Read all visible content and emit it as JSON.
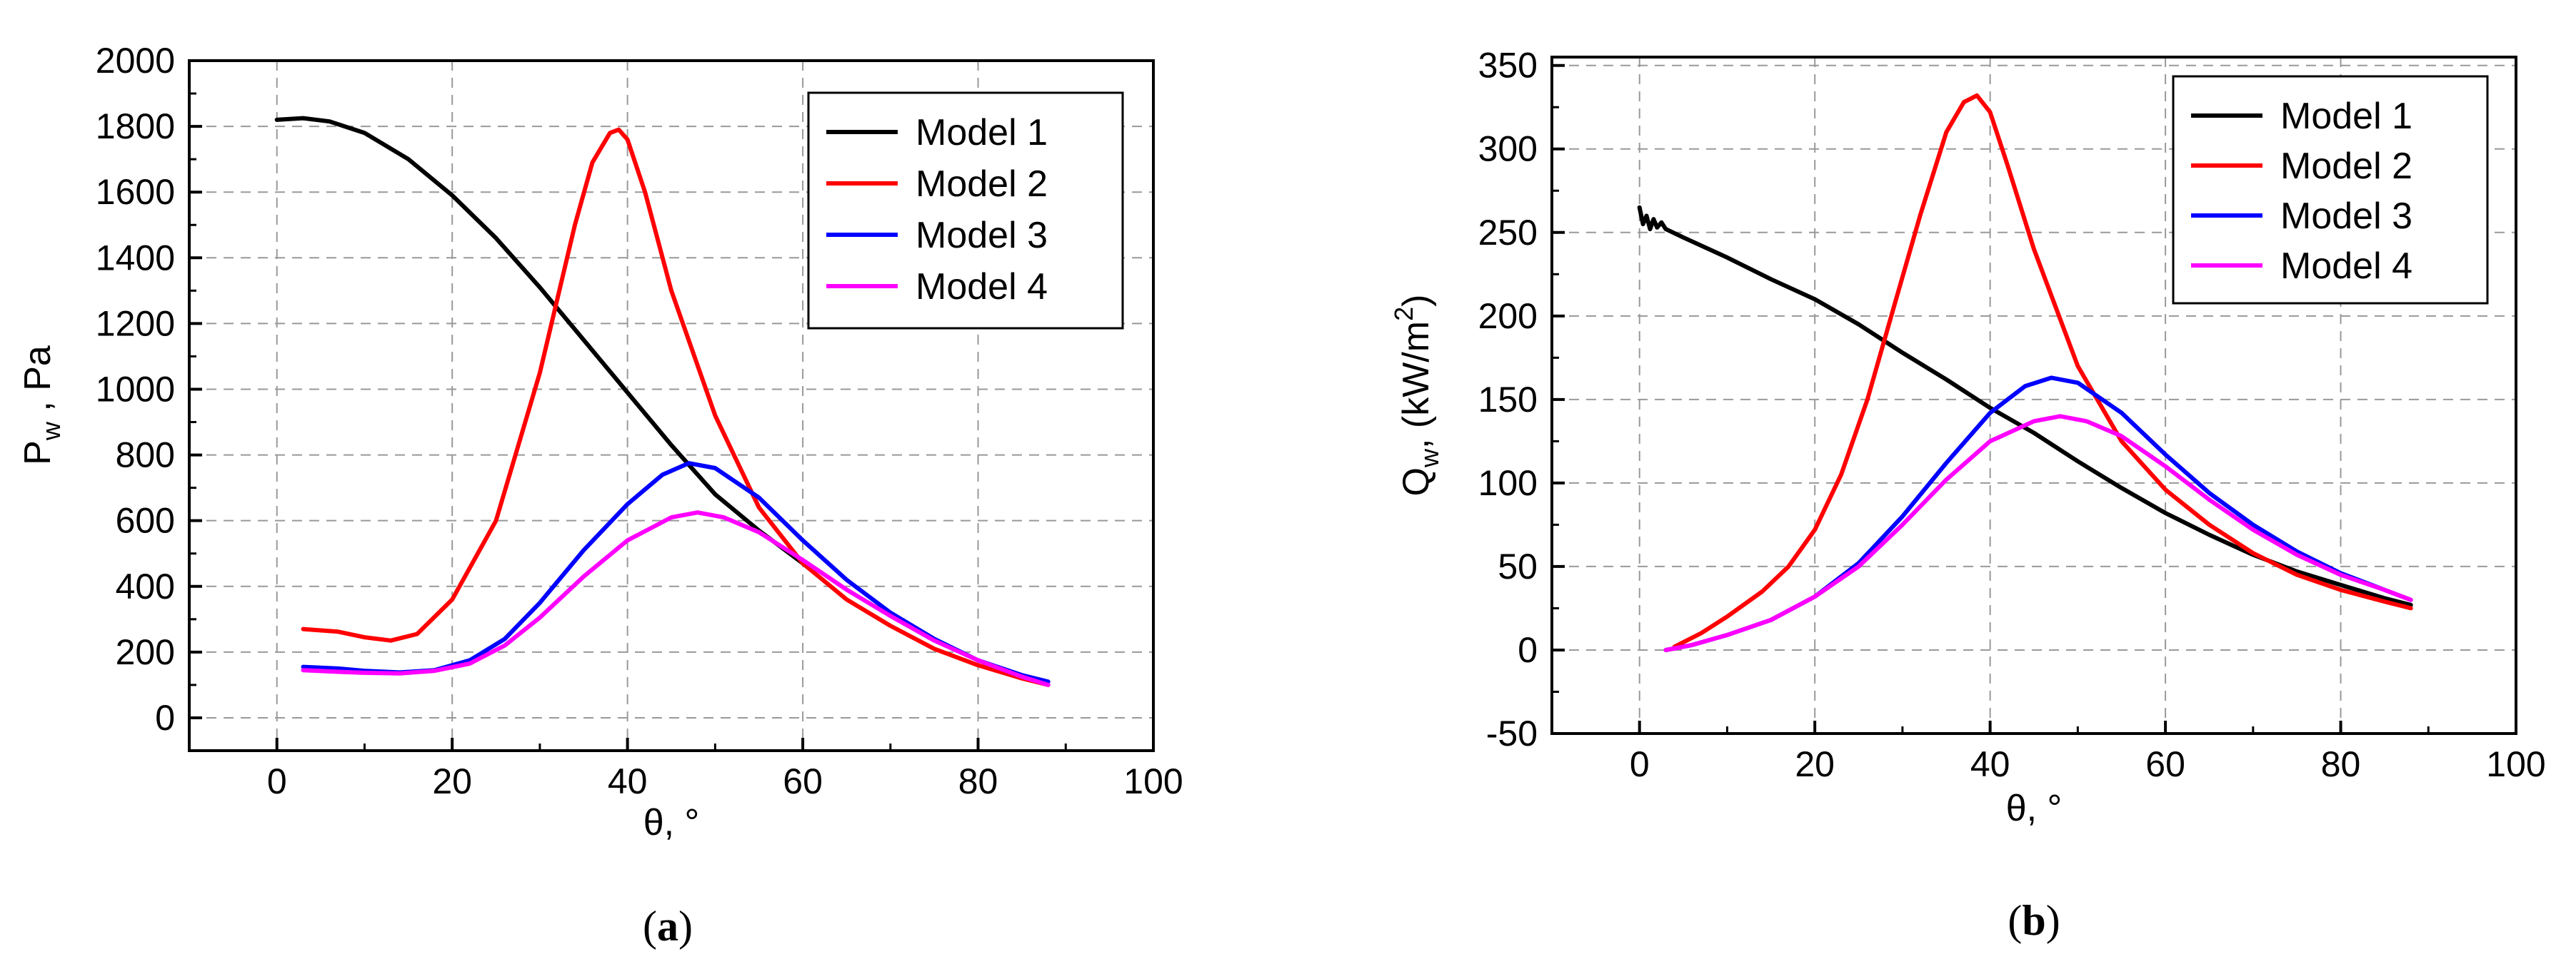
{
  "chart_data": [
    {
      "type": "line",
      "caption_open": "(",
      "caption_letter": "a",
      "caption_close": ")",
      "xlabel": "θ, °",
      "ylabel_main": "P",
      "ylabel_sub": "w",
      "ylabel_rest": " , Pa",
      "xlim": [
        -10,
        100
      ],
      "ylim": [
        -100,
        2000
      ],
      "xticks": [
        0,
        20,
        40,
        60,
        80,
        100
      ],
      "yticks": [
        0,
        200,
        400,
        600,
        800,
        1000,
        1200,
        1400,
        1600,
        1800,
        2000
      ],
      "grid": true,
      "legend_position": "top-right",
      "series": [
        {
          "name": "Model 1",
          "color": "#000000",
          "x": [
            0,
            3,
            6,
            10,
            15,
            20,
            25,
            30,
            35,
            40,
            45,
            50,
            55,
            60
          ],
          "y": [
            1820,
            1825,
            1815,
            1780,
            1700,
            1590,
            1460,
            1310,
            1150,
            990,
            830,
            680,
            570,
            470
          ]
        },
        {
          "name": "Model 2",
          "color": "#ff0000",
          "x": [
            3,
            7,
            10,
            13,
            16,
            20,
            25,
            30,
            34,
            36,
            38,
            39,
            40,
            42,
            45,
            50,
            55,
            60,
            65,
            70,
            75,
            80,
            85,
            88
          ],
          "y": [
            270,
            262,
            245,
            235,
            255,
            360,
            600,
            1050,
            1500,
            1690,
            1780,
            1790,
            1760,
            1600,
            1300,
            920,
            640,
            470,
            360,
            280,
            210,
            160,
            120,
            100
          ]
        },
        {
          "name": "Model 3",
          "color": "#0000ff",
          "x": [
            3,
            7,
            10,
            14,
            18,
            22,
            26,
            30,
            35,
            40,
            44,
            47,
            50,
            55,
            60,
            65,
            70,
            75,
            80,
            85,
            88
          ],
          "y": [
            155,
            150,
            143,
            138,
            145,
            175,
            240,
            350,
            510,
            650,
            740,
            775,
            760,
            670,
            540,
            420,
            320,
            240,
            175,
            130,
            110
          ]
        },
        {
          "name": "Model 4",
          "color": "#ff00ff",
          "x": [
            3,
            7,
            10,
            14,
            18,
            22,
            26,
            30,
            35,
            40,
            45,
            48,
            51,
            55,
            60,
            65,
            70,
            75,
            80,
            85,
            88
          ],
          "y": [
            145,
            140,
            137,
            135,
            143,
            165,
            220,
            305,
            430,
            540,
            610,
            625,
            610,
            565,
            480,
            390,
            310,
            235,
            175,
            125,
            100
          ]
        }
      ]
    },
    {
      "type": "line",
      "caption_open": "(",
      "caption_letter": "b",
      "caption_close": ")",
      "xlabel": "θ, °",
      "ylabel_main": "Q",
      "ylabel_sub": "w",
      "ylabel_rest": ", (kW/m",
      "ylabel_sup": "2",
      "ylabel_end": ")",
      "xlim": [
        -10,
        100
      ],
      "ylim": [
        -50,
        355
      ],
      "xticks": [
        0,
        20,
        40,
        60,
        80,
        100
      ],
      "yticks": [
        -50,
        0,
        50,
        100,
        150,
        200,
        250,
        300,
        350
      ],
      "grid": true,
      "legend_position": "top-right",
      "series": [
        {
          "name": "Model 1",
          "color": "#000000",
          "x": [
            0,
            0.4,
            0.8,
            1.2,
            1.6,
            2,
            2.5,
            3,
            5,
            10,
            15,
            20,
            25,
            30,
            35,
            40,
            45,
            50,
            55,
            60,
            65,
            70,
            75,
            80,
            85,
            88
          ],
          "y": [
            265,
            255,
            260,
            252,
            258,
            253,
            256,
            252,
            247,
            235,
            222,
            210,
            195,
            178,
            162,
            145,
            130,
            113,
            97,
            82,
            69,
            57,
            47,
            39,
            31,
            27
          ]
        },
        {
          "name": "Model 2",
          "color": "#ff0000",
          "x": [
            4,
            7,
            10,
            14,
            17,
            20,
            23,
            26,
            29,
            32,
            35,
            37,
            38.5,
            40,
            42,
            45,
            50,
            55,
            60,
            65,
            70,
            75,
            80,
            85,
            88
          ],
          "y": [
            2,
            10,
            20,
            35,
            50,
            72,
            105,
            150,
            205,
            260,
            310,
            328,
            332,
            322,
            290,
            240,
            170,
            125,
            96,
            75,
            58,
            45,
            36,
            29,
            25
          ]
        },
        {
          "name": "Model 3",
          "color": "#0000ff",
          "x": [
            3,
            6,
            10,
            15,
            20,
            25,
            30,
            35,
            40,
            44,
            47,
            50,
            55,
            60,
            65,
            70,
            75,
            80,
            85,
            88
          ],
          "y": [
            0,
            3,
            9,
            18,
            32,
            52,
            80,
            112,
            142,
            158,
            163,
            160,
            142,
            117,
            94,
            75,
            59,
            46,
            36,
            30
          ]
        },
        {
          "name": "Model 4",
          "color": "#ff00ff",
          "x": [
            3,
            6,
            10,
            15,
            20,
            25,
            30,
            35,
            40,
            45,
            48,
            51,
            55,
            60,
            65,
            70,
            75,
            80,
            85,
            88
          ],
          "y": [
            0,
            3,
            9,
            18,
            32,
            50,
            75,
            102,
            125,
            137,
            140,
            137,
            128,
            110,
            90,
            72,
            57,
            45,
            36,
            30
          ]
        }
      ]
    }
  ]
}
